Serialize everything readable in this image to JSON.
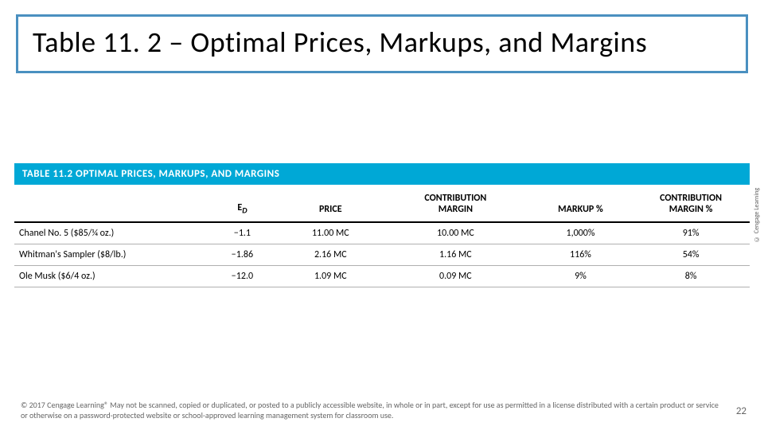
{
  "colors": {
    "title_border": "#4a90c0",
    "table_header_bg": "#00a8d6",
    "row_border": "#b0b0b0"
  },
  "slide": {
    "title": "Table 11. 2 – Optimal Prices, Markups, and Margins",
    "page_number": "22"
  },
  "table": {
    "caption": "TABLE 11.2   OPTIMAL PRICES, MARKUPS, AND MARGINS",
    "columns": [
      {
        "label": "",
        "html": ""
      },
      {
        "label": "ED",
        "html": "E<sub class=\"sub-i\">D</sub>"
      },
      {
        "label": "PRICE",
        "html": "PRICE"
      },
      {
        "label": "CONTRIBUTION MARGIN",
        "html": "CONTRIBUTION<br>MARGIN"
      },
      {
        "label": "MARKUP %",
        "html": "MARKUP %"
      },
      {
        "label": "CONTRIBUTION MARGIN %",
        "html": "CONTRIBUTION<br>MARGIN %"
      }
    ],
    "rows": [
      {
        "product": "Chanel No. 5 ($85/¼ oz.)",
        "ed": "−1.1",
        "price": "11.00 MC",
        "cm": "10.00 MC",
        "markup": "1,000%",
        "cmp": "91%"
      },
      {
        "product": "Whitman's Sampler ($8/lb.)",
        "ed": "−1.86",
        "price": "2.16 MC",
        "cm": "1.16 MC",
        "markup": "116%",
        "cmp": "54%"
      },
      {
        "product": "Ole Musk ($6/4 oz.)",
        "ed": "−12.0",
        "price": "1.09 MC",
        "cm": "0.09 MC",
        "markup": "9%",
        "cmp": "8%"
      }
    ],
    "col_widths": [
      "26%",
      "10%",
      "14%",
      "20%",
      "14%",
      "16%"
    ]
  },
  "side_credit": "© Cengage Learning",
  "footer": "© 2017 Cengage Learning® May not be scanned, copied or duplicated, or posted to a publicly accessible website, in whole or in part, except for use as permitted in a license distributed with a certain product or service or otherwise on a password-protected website or school-approved learning management system for classroom use."
}
